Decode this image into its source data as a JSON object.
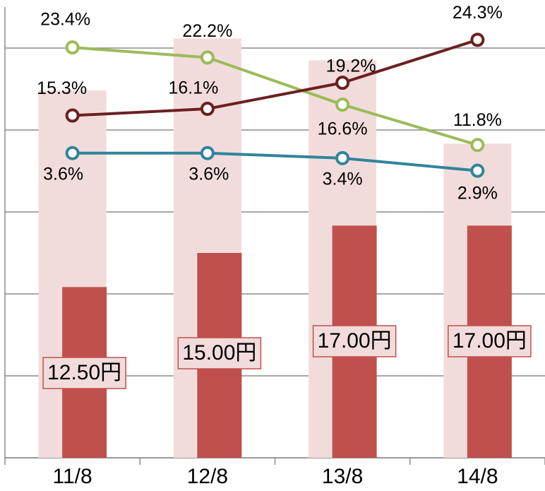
{
  "chart_data": {
    "type": "combo",
    "categories": [
      "11/8",
      "12/8",
      "13/8",
      "14/8"
    ],
    "ylim": [
      0,
      33
    ],
    "yticks": [
      0,
      6,
      12,
      18,
      24,
      30
    ],
    "grid": true,
    "y2lim": [
      -25.4,
      28.2
    ],
    "y3lim": [
      -8.5,
      9.4
    ],
    "series": [
      {
        "type": "bar",
        "color": "#f2dcdb",
        "values": [
          26.9,
          30.7,
          29.1,
          23.0
        ]
      },
      {
        "type": "bar",
        "color": "#c0504d",
        "values": [
          12.5,
          15,
          17,
          17
        ],
        "value_labels": [
          "12.50円",
          "15.00円",
          "17.00円",
          "17.00円"
        ]
      },
      {
        "type": "line",
        "axis": "y2",
        "color": "#9bbb59",
        "values": [
          23.4,
          22.2,
          16.6,
          11.8
        ],
        "value_labels": [
          "23.4%",
          "22.2%",
          "16.6%",
          "11.8%"
        ]
      },
      {
        "type": "line",
        "axis": "y2",
        "color": "#6b2020",
        "values": [
          15.3,
          16.1,
          19.2,
          24.3
        ],
        "value_labels": [
          "15.3%",
          "16.1%",
          "19.2%",
          "24.3%"
        ]
      },
      {
        "type": "line",
        "axis": "y3",
        "color": "#31849b",
        "values": [
          3.6,
          3.6,
          3.4,
          2.9
        ],
        "value_labels": [
          "3.6%",
          "3.6%",
          "3.4%",
          "2.9%"
        ]
      }
    ]
  }
}
